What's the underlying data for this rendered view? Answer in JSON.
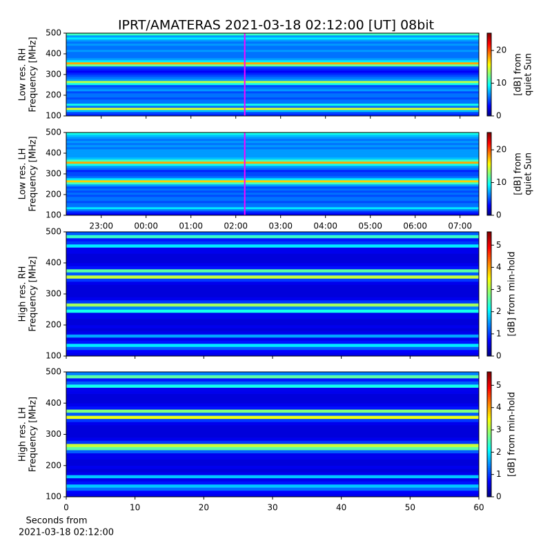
{
  "title": "IPRT/AMATERAS 2021-03-18 02:12:00 [UT]   08bit",
  "chart_data": [
    {
      "type": "heatmap",
      "ylabel": [
        "Low res. RH",
        "Frequency [MHz]"
      ],
      "xlim": [
        22.22,
        31.42
      ],
      "xticks": [
        {
          "value": 23,
          "label": "23:00"
        },
        {
          "value": 24,
          "label": "00:00"
        },
        {
          "value": 25,
          "label": "01:00"
        },
        {
          "value": 26,
          "label": "02:00"
        },
        {
          "value": 27,
          "label": "03:00"
        },
        {
          "value": 28,
          "label": "04:00"
        },
        {
          "value": 29,
          "label": "05:00"
        },
        {
          "value": 30,
          "label": "06:00"
        },
        {
          "value": 31,
          "label": "07:00"
        }
      ],
      "show_xtick_labels": false,
      "ylim": [
        100,
        500
      ],
      "yticks": [
        100,
        200,
        300,
        400,
        500
      ],
      "y": [
        100,
        110,
        120,
        130,
        140,
        150,
        160,
        170,
        180,
        190,
        200,
        210,
        220,
        230,
        240,
        250,
        260,
        270,
        280,
        290,
        300,
        310,
        320,
        330,
        340,
        350,
        360,
        370,
        380,
        390,
        400,
        410,
        420,
        430,
        440,
        450,
        460,
        470,
        480,
        490
      ],
      "values": [
        4,
        5,
        8,
        15,
        6,
        10,
        6,
        6,
        5,
        6,
        6,
        5,
        7,
        6,
        5,
        10,
        14,
        7,
        6,
        5,
        4,
        3,
        4,
        5,
        12,
        18,
        9,
        7,
        6,
        6,
        6,
        7,
        6,
        6,
        7,
        6,
        7,
        9,
        7,
        11
      ],
      "marker_x": 26.2,
      "marker_color": "#ff00ff",
      "colorbar": {
        "lim": [
          0,
          25.3
        ],
        "ticks": [
          0,
          10,
          20
        ],
        "label": [
          "[dB] from",
          "quiet Sun"
        ]
      }
    },
    {
      "type": "heatmap",
      "ylabel": [
        "Low res. LH",
        "Frequency [MHz]"
      ],
      "xlim": [
        22.22,
        31.42
      ],
      "xticks": [
        {
          "value": 23,
          "label": "23:00"
        },
        {
          "value": 24,
          "label": "00:00"
        },
        {
          "value": 25,
          "label": "01:00"
        },
        {
          "value": 26,
          "label": "02:00"
        },
        {
          "value": 27,
          "label": "03:00"
        },
        {
          "value": 28,
          "label": "04:00"
        },
        {
          "value": 29,
          "label": "05:00"
        },
        {
          "value": 30,
          "label": "06:00"
        },
        {
          "value": 31,
          "label": "07:00"
        }
      ],
      "show_xtick_labels": true,
      "ylim": [
        100,
        500
      ],
      "yticks": [
        100,
        200,
        300,
        400,
        500
      ],
      "y": [
        100,
        110,
        120,
        130,
        140,
        150,
        160,
        170,
        180,
        190,
        200,
        210,
        220,
        230,
        240,
        250,
        260,
        270,
        280,
        290,
        300,
        310,
        320,
        330,
        340,
        350,
        360,
        370,
        380,
        390,
        400,
        410,
        420,
        430,
        440,
        450,
        460,
        470,
        480,
        490
      ],
      "values": [
        3,
        4,
        6,
        9,
        6,
        6,
        5,
        6,
        6,
        5,
        6,
        5,
        6,
        5,
        7,
        11,
        17,
        9,
        6,
        5,
        5,
        4,
        6,
        7,
        10,
        18,
        11,
        8,
        7,
        7,
        7,
        7,
        6,
        7,
        6,
        7,
        6,
        7,
        8,
        10
      ],
      "marker_x": 26.2,
      "marker_color": "#ff00ff",
      "colorbar": {
        "lim": [
          0,
          25.3
        ],
        "ticks": [
          0,
          10,
          20
        ],
        "label": [
          "[dB] from",
          "quiet Sun"
        ]
      }
    },
    {
      "type": "heatmap",
      "ylabel": [
        "High res. RH",
        "Frequency [MHz]"
      ],
      "xlim": [
        0,
        60
      ],
      "xticks": [
        0,
        10,
        20,
        30,
        40,
        50,
        60
      ],
      "show_xtick_labels": false,
      "ylim": [
        100,
        500
      ],
      "yticks": [
        100,
        200,
        300,
        400,
        500
      ],
      "y": [
        100,
        110,
        120,
        130,
        140,
        150,
        160,
        170,
        180,
        190,
        200,
        210,
        220,
        230,
        240,
        250,
        260,
        270,
        280,
        290,
        300,
        310,
        320,
        330,
        340,
        350,
        360,
        370,
        380,
        390,
        400,
        410,
        420,
        430,
        440,
        450,
        460,
        470,
        480,
        490
      ],
      "values": [
        0.6,
        0.7,
        1.2,
        2.0,
        0.8,
        0.6,
        1.6,
        0.6,
        0.5,
        0.6,
        0.5,
        0.5,
        0.6,
        0.6,
        2.2,
        1.4,
        3.0,
        1.0,
        0.6,
        0.5,
        0.5,
        0.5,
        0.5,
        0.6,
        1.0,
        3.2,
        1.2,
        2.6,
        0.8,
        0.6,
        0.5,
        0.5,
        0.5,
        0.6,
        0.6,
        2.0,
        1.0,
        0.8,
        2.4,
        1.2
      ],
      "colorbar": {
        "lim": [
          0,
          5.6
        ],
        "ticks": [
          0,
          1,
          2,
          3,
          4,
          5
        ],
        "label": [
          "[dB] from min-hold"
        ]
      }
    },
    {
      "type": "heatmap",
      "ylabel": [
        "High res. LH",
        "Frequency [MHz]"
      ],
      "xlim": [
        0,
        60
      ],
      "xticks": [
        0,
        10,
        20,
        30,
        40,
        50,
        60
      ],
      "show_xtick_labels": true,
      "xlabel": [
        "Seconds from",
        "2021-03-18 02:12:00"
      ],
      "ylim": [
        100,
        500
      ],
      "yticks": [
        100,
        200,
        300,
        400,
        500
      ],
      "y": [
        100,
        110,
        120,
        130,
        140,
        150,
        160,
        170,
        180,
        190,
        200,
        210,
        220,
        230,
        240,
        250,
        260,
        270,
        280,
        290,
        300,
        310,
        320,
        330,
        340,
        350,
        360,
        370,
        380,
        390,
        400,
        410,
        420,
        430,
        440,
        450,
        460,
        470,
        480,
        490
      ],
      "values": [
        0.6,
        0.7,
        1.3,
        1.8,
        0.8,
        0.6,
        1.8,
        0.6,
        0.5,
        0.6,
        0.5,
        0.5,
        0.6,
        0.6,
        1.2,
        2.6,
        3.2,
        1.0,
        0.6,
        0.5,
        0.5,
        0.5,
        0.5,
        0.6,
        1.0,
        3.4,
        1.2,
        2.8,
        0.8,
        0.6,
        0.5,
        0.5,
        0.5,
        0.6,
        0.6,
        2.2,
        1.2,
        0.8,
        2.6,
        1.4
      ],
      "colorbar": {
        "lim": [
          0,
          5.6
        ],
        "ticks": [
          0,
          1,
          2,
          3,
          4,
          5
        ],
        "label": [
          "[dB] from min-hold"
        ]
      }
    }
  ]
}
